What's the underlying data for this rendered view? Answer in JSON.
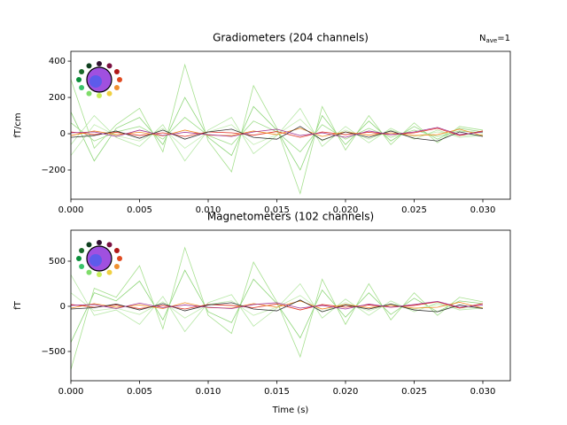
{
  "chart_data": [
    {
      "type": "line",
      "title": "Gradiometers (204 channels)",
      "annotation": {
        "base": "N",
        "sub": "ave",
        "rest": "=1"
      },
      "y_label": "fT/cm",
      "x": [
        0,
        0.0017,
        0.0033,
        0.005,
        0.0067,
        0.0083,
        0.01,
        0.0117,
        0.0133,
        0.015,
        0.0167,
        0.0183,
        0.02,
        0.0217,
        0.0233,
        0.025,
        0.0267,
        0.0283,
        0.03
      ],
      "xlim": [
        0,
        0.032
      ],
      "ylim": [
        -361,
        454
      ],
      "xticks": [
        {
          "value": 0,
          "label": "0.000"
        },
        {
          "value": 0.005,
          "label": "0.005"
        },
        {
          "value": 0.01,
          "label": "0.010"
        },
        {
          "value": 0.015,
          "label": "0.015"
        },
        {
          "value": 0.02,
          "label": "0.020"
        },
        {
          "value": 0.025,
          "label": "0.025"
        },
        {
          "value": 0.03,
          "label": "0.030"
        }
      ],
      "yticks": [
        {
          "value": -200,
          "label": "−200"
        },
        0,
        200,
        400
      ],
      "series": [
        {
          "color": "#a6e08f",
          "values": [
            300,
            -80,
            50,
            140,
            -100,
            380,
            -40,
            -210,
            265,
            30,
            -330,
            150,
            -90,
            100,
            -60,
            60,
            -50,
            40,
            20
          ]
        },
        {
          "color": "#8fd67a",
          "values": [
            120,
            -150,
            30,
            90,
            -60,
            200,
            -20,
            -120,
            150,
            20,
            -200,
            100,
            -60,
            70,
            -40,
            40,
            -30,
            30,
            10
          ]
        },
        {
          "color": "#b8e8a8",
          "values": [
            -60,
            100,
            -20,
            -70,
            50,
            -150,
            20,
            90,
            -110,
            -10,
            140,
            -70,
            40,
            -50,
            30,
            -30,
            20,
            -20,
            -10
          ]
        },
        {
          "color": "#9cdc88",
          "values": [
            60,
            -40,
            10,
            40,
            -30,
            90,
            -10,
            -60,
            70,
            10,
            -100,
            50,
            -30,
            30,
            -20,
            20,
            -15,
            15,
            5
          ]
        },
        {
          "color": "#c2ecb2",
          "values": [
            -120,
            50,
            -10,
            -40,
            30,
            -80,
            10,
            50,
            -60,
            -5,
            80,
            -40,
            20,
            -30,
            20,
            -15,
            10,
            -10,
            -5
          ]
        },
        {
          "color": "#e03020",
          "values": [
            10,
            -5,
            8,
            -10,
            5,
            -15,
            10,
            5,
            -8,
            12,
            -20,
            10,
            -5,
            8,
            -6,
            5,
            30,
            -10,
            15
          ]
        },
        {
          "color": "#f08a20",
          "values": [
            -10,
            15,
            -5,
            8,
            -12,
            20,
            -8,
            -10,
            15,
            -5,
            30,
            -15,
            10,
            -8,
            5,
            -10,
            -5,
            25,
            -10
          ]
        },
        {
          "color": "#303030",
          "values": [
            -20,
            -10,
            15,
            -25,
            20,
            -30,
            10,
            25,
            -20,
            -30,
            40,
            -35,
            10,
            -20,
            15,
            -25,
            -40,
            10,
            -15
          ]
        },
        {
          "color": "#a03090",
          "values": [
            5,
            10,
            -15,
            20,
            -10,
            8,
            -5,
            -15,
            10,
            25,
            -10,
            5,
            -20,
            15,
            -5,
            10,
            35,
            -5,
            10
          ]
        }
      ]
    },
    {
      "type": "line",
      "title": "Magnetometers (102 channels)",
      "y_label": "fT",
      "x_label": "Time (s)",
      "x": [
        0,
        0.0017,
        0.0033,
        0.005,
        0.0067,
        0.0083,
        0.01,
        0.0117,
        0.0133,
        0.015,
        0.0167,
        0.0183,
        0.02,
        0.0217,
        0.0233,
        0.025,
        0.0267,
        0.0283,
        0.03
      ],
      "xlim": [
        0,
        0.032
      ],
      "ylim": [
        -824,
        843
      ],
      "xticks": [
        {
          "value": 0,
          "label": "0.000"
        },
        {
          "value": 0.005,
          "label": "0.005"
        },
        {
          "value": 0.01,
          "label": "0.010"
        },
        {
          "value": 0.015,
          "label": "0.015"
        },
        {
          "value": 0.02,
          "label": "0.020"
        },
        {
          "value": 0.025,
          "label": "0.025"
        },
        {
          "value": 0.03,
          "label": "0.030"
        }
      ],
      "yticks": [
        {
          "value": -500,
          "label": "−500"
        },
        0,
        500
      ],
      "series": [
        {
          "color": "#a6e08f",
          "values": [
            -700,
            200,
            100,
            450,
            -250,
            650,
            -100,
            -300,
            490,
            50,
            -560,
            300,
            -200,
            250,
            -150,
            150,
            -100,
            100,
            50
          ]
        },
        {
          "color": "#8fd67a",
          "values": [
            -400,
            150,
            60,
            280,
            -150,
            400,
            -60,
            -180,
            300,
            30,
            -350,
            180,
            -120,
            150,
            -90,
            90,
            -60,
            60,
            30
          ]
        },
        {
          "color": "#b8e8a8",
          "values": [
            350,
            -100,
            -40,
            -200,
            110,
            -280,
            40,
            130,
            -220,
            -20,
            250,
            -130,
            80,
            -100,
            60,
            -60,
            40,
            -40,
            -20
          ]
        },
        {
          "color": "#c2ecb2",
          "values": [
            150,
            -50,
            -20,
            -90,
            50,
            -130,
            20,
            60,
            -100,
            -10,
            120,
            -60,
            40,
            -50,
            30,
            -30,
            20,
            -20,
            -10
          ]
        },
        {
          "color": "#e03020",
          "values": [
            20,
            -10,
            15,
            -25,
            10,
            -30,
            20,
            10,
            -15,
            25,
            -40,
            20,
            -10,
            15,
            -10,
            10,
            50,
            -20,
            30
          ]
        },
        {
          "color": "#f08a20",
          "values": [
            -20,
            30,
            -10,
            15,
            -25,
            40,
            -15,
            -20,
            30,
            -10,
            60,
            -30,
            20,
            -15,
            10,
            -20,
            -10,
            45,
            -20
          ]
        },
        {
          "color": "#303030",
          "values": [
            -30,
            -15,
            25,
            -40,
            30,
            -50,
            15,
            40,
            -30,
            -50,
            70,
            -60,
            15,
            -30,
            25,
            -40,
            -60,
            15,
            -25
          ]
        },
        {
          "color": "#a03090",
          "values": [
            10,
            20,
            -25,
            35,
            -15,
            15,
            -10,
            -25,
            20,
            40,
            -20,
            10,
            -30,
            25,
            -10,
            20,
            55,
            -10,
            15
          ]
        }
      ]
    }
  ]
}
